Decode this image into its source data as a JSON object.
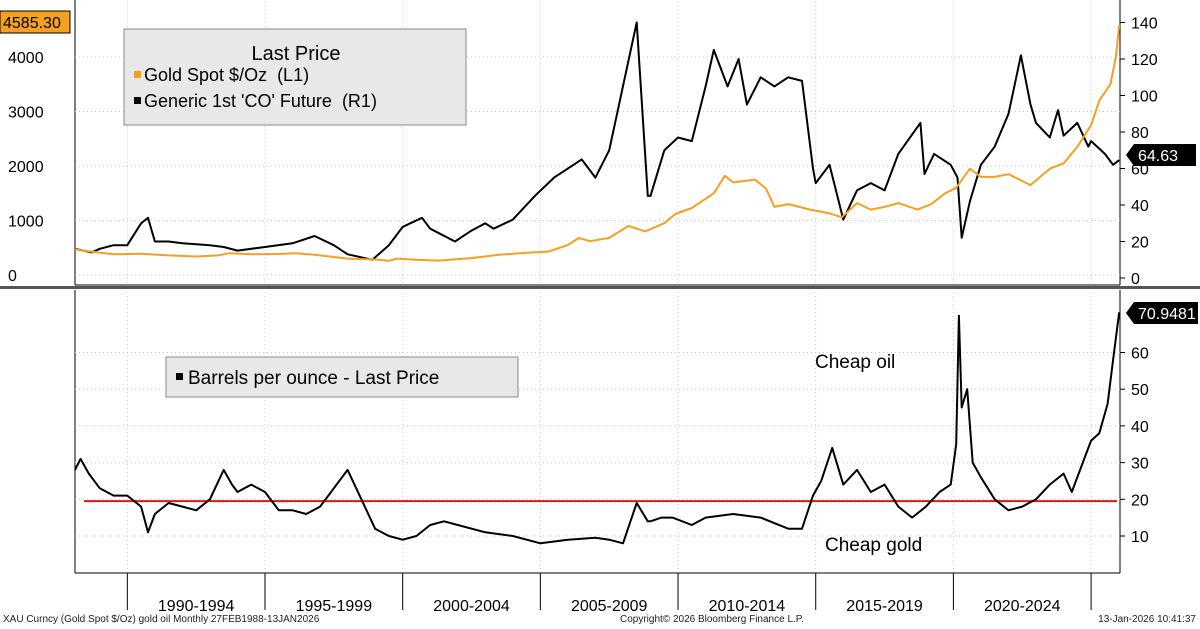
{
  "footer": {
    "left": "XAU Curncy (Gold Spot  $/Oz) gold oil Monthly 27FEB1988-13JAN2026",
    "center": "Copyright© 2026 Bloomberg Finance L.P.",
    "right": "13-Jan-2026 10:41:37"
  },
  "colors": {
    "gold": "#f5a020",
    "oil": "#000000",
    "ratio": "#000000",
    "reference_line": "#e0141e",
    "legend_bg": "#e8e8e8",
    "value_badge_gold": "#f5a020"
  },
  "chart_data": [
    {
      "type": "line",
      "title": "Last Price",
      "x_range": [
        1988.1,
        2026.05
      ],
      "x_tick_labels": [
        "1990-1994",
        "1995-1999",
        "2000-2004",
        "2005-2009",
        "2010-2014",
        "2015-2019",
        "2020-2024"
      ],
      "left_axis": {
        "ylim": [
          0,
          4700
        ],
        "ticks": [
          0,
          1000,
          2000,
          3000,
          4000
        ]
      },
      "right_axis": {
        "ylim": [
          0,
          150
        ],
        "ticks": [
          0,
          20,
          40,
          60,
          80,
          100,
          120,
          140
        ]
      },
      "last_value_labels": {
        "gold": "4585.30",
        "oil": "64.63"
      },
      "series": [
        {
          "name": "Gold Spot $/Oz  (L1)",
          "axis": "left",
          "x": [
            1988.1,
            1988.5,
            1989.5,
            1990.5,
            1991.5,
            1992.5,
            1993.3,
            1993.7,
            1994.5,
            1995.5,
            1996.1,
            1996.8,
            1997.5,
            1998,
            1999,
            1999.5,
            1999.8,
            2000.5,
            2001.3,
            2002.5,
            2003.5,
            2004.5,
            2005.3,
            2006,
            2006.4,
            2006.8,
            2007.5,
            2008.2,
            2008.8,
            2009.5,
            2009.9,
            2010.5,
            2011.3,
            2011.7,
            2012,
            2012.8,
            2013.2,
            2013.5,
            2014,
            2014.8,
            2015.5,
            2015.95,
            2016.5,
            2017,
            2017.5,
            2018,
            2018.7,
            2019.2,
            2019.7,
            2020.1,
            2020.6,
            2021,
            2021.5,
            2022,
            2022.8,
            2023.5,
            2024,
            2024.5,
            2025,
            2025.3,
            2025.7,
            2025.9,
            2026.02
          ],
          "y": [
            470,
            440,
            380,
            390,
            360,
            340,
            360,
            400,
            380,
            385,
            400,
            370,
            330,
            300,
            285,
            260,
            300,
            280,
            265,
            310,
            370,
            410,
            430,
            550,
            680,
            620,
            680,
            900,
            800,
            950,
            1120,
            1230,
            1500,
            1820,
            1700,
            1750,
            1580,
            1250,
            1300,
            1200,
            1130,
            1060,
            1320,
            1200,
            1250,
            1320,
            1200,
            1300,
            1500,
            1600,
            1950,
            1800,
            1800,
            1850,
            1650,
            1950,
            2050,
            2350,
            2750,
            3200,
            3500,
            4000,
            4585.3
          ]
        },
        {
          "name": "Generic 1st 'CO' Future  (R1)",
          "axis": "right",
          "x": [
            1988.1,
            1988.7,
            1989,
            1989.5,
            1990,
            1990.5,
            1990.75,
            1991,
            1991.5,
            1992,
            1993,
            1993.5,
            1994,
            1995,
            1996,
            1996.8,
            1997.5,
            1998,
            1998.9,
            1999.5,
            2000,
            2000.7,
            2001,
            2001.9,
            2002.5,
            2003,
            2003.3,
            2004,
            2004.8,
            2005.5,
            2006.5,
            2007,
            2007.5,
            2008.5,
            2008.9,
            2009,
            2009.5,
            2010,
            2010.5,
            2011,
            2011.3,
            2011.8,
            2012.2,
            2012.5,
            2013,
            2013.5,
            2014,
            2014.5,
            2014.9,
            2015,
            2015.5,
            2016,
            2016.5,
            2017,
            2017.5,
            2018,
            2018.8,
            2018.95,
            2019.3,
            2019.9,
            2020.15,
            2020.3,
            2020.6,
            2021,
            2021.5,
            2022,
            2022.45,
            2022.8,
            2023,
            2023.5,
            2023.8,
            2024,
            2024.5,
            2024.9,
            2025,
            2025.5,
            2025.8,
            2026.02
          ],
          "y": [
            16,
            14,
            16,
            18,
            18,
            30,
            33,
            20,
            20,
            19,
            18,
            17,
            15,
            17,
            19,
            23,
            18,
            13,
            10,
            18,
            28,
            33,
            27,
            20,
            26,
            30,
            27,
            32,
            45,
            55,
            65,
            55,
            70,
            140,
            45,
            45,
            70,
            77,
            75,
            105,
            125,
            105,
            120,
            95,
            110,
            105,
            110,
            108,
            60,
            52,
            62,
            32,
            48,
            52,
            48,
            68,
            85,
            57,
            68,
            62,
            55,
            22,
            42,
            62,
            72,
            90,
            122,
            95,
            85,
            77,
            92,
            78,
            85,
            72,
            75,
            68,
            62,
            64.63
          ]
        }
      ]
    },
    {
      "type": "line",
      "title": "",
      "x_range": [
        1988.1,
        2026.05
      ],
      "x_tick_labels": [
        "1990-1994",
        "1995-1999",
        "2000-2004",
        "2005-2009",
        "2010-2014",
        "2015-2019",
        "2020-2024"
      ],
      "right_axis": {
        "ylim": [
          0,
          76
        ],
        "ticks": [
          10,
          20,
          30,
          40,
          50,
          60
        ]
      },
      "last_value_label": "70.9481",
      "reference_line": {
        "y": 19.5
      },
      "annotations": [
        "Cheap oil",
        "Cheap gold"
      ],
      "series": [
        {
          "name": "Barrels per ounce - Last Price",
          "axis": "right",
          "x": [
            1988.1,
            1988.3,
            1988.6,
            1989,
            1989.5,
            1990,
            1990.5,
            1990.75,
            1991,
            1991.5,
            1992,
            1992.5,
            1993,
            1993.5,
            1993.8,
            1994,
            1994.5,
            1995,
            1995.5,
            1996,
            1996.5,
            1997,
            1997.5,
            1998,
            1998.5,
            1999,
            1999.5,
            2000,
            2000.5,
            2001,
            2001.5,
            2002,
            2003,
            2004,
            2005,
            2006,
            2007,
            2007.5,
            2008,
            2008.5,
            2008.9,
            2009,
            2009.4,
            2009.8,
            2010.5,
            2011,
            2012,
            2013,
            2014,
            2014.5,
            2014.9,
            2015.2,
            2015.6,
            2016,
            2016.5,
            2017,
            2017.5,
            2018,
            2018.5,
            2019,
            2019.5,
            2019.9,
            2020.1,
            2020.2,
            2020.3,
            2020.5,
            2020.7,
            2021,
            2021.5,
            2022,
            2022.5,
            2023,
            2023.5,
            2024,
            2024.3,
            2024.7,
            2025,
            2025.3,
            2025.6,
            2025.8,
            2026.02
          ],
          "y": [
            28,
            31,
            27,
            23,
            21,
            21,
            18,
            11,
            16,
            19,
            18,
            17,
            20,
            28,
            24,
            22,
            24,
            22,
            17,
            17,
            16,
            18,
            23,
            28,
            20,
            12,
            10,
            9,
            10,
            13,
            14,
            13,
            11,
            10,
            8,
            9,
            9.5,
            9,
            8,
            19,
            14,
            14,
            15,
            15,
            13,
            15,
            16,
            15,
            12,
            12,
            21,
            25,
            34,
            24,
            28,
            22,
            24,
            18,
            15,
            18,
            22,
            24,
            35,
            70,
            45,
            50,
            30,
            26,
            20,
            17,
            18,
            20,
            24,
            27,
            22,
            30,
            36,
            38,
            46,
            58,
            70.9481
          ]
        }
      ]
    }
  ]
}
